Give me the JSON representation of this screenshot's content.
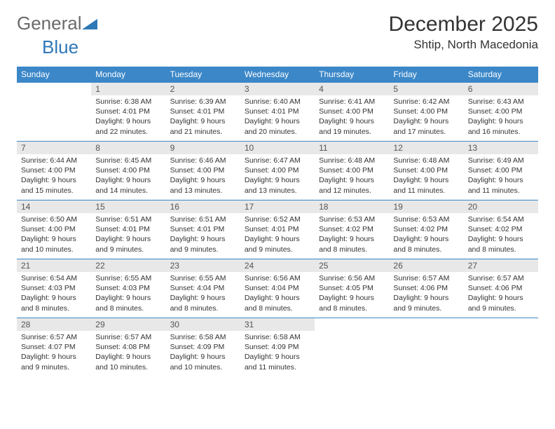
{
  "logo": {
    "general": "General",
    "blue": "Blue"
  },
  "header": {
    "month_title": "December 2025",
    "location": "Shtip, North Macedonia"
  },
  "weekdays": [
    "Sunday",
    "Monday",
    "Tuesday",
    "Wednesday",
    "Thursday",
    "Friday",
    "Saturday"
  ],
  "colors": {
    "header_bg": "#3b87c8",
    "header_fg": "#ffffff",
    "daynum_bg": "#e8e8e8",
    "rule": "#3b87c8"
  },
  "weeks": [
    [
      null,
      {
        "n": "1",
        "sunrise": "6:38 AM",
        "sunset": "4:01 PM",
        "daylight": "9 hours and 22 minutes."
      },
      {
        "n": "2",
        "sunrise": "6:39 AM",
        "sunset": "4:01 PM",
        "daylight": "9 hours and 21 minutes."
      },
      {
        "n": "3",
        "sunrise": "6:40 AM",
        "sunset": "4:01 PM",
        "daylight": "9 hours and 20 minutes."
      },
      {
        "n": "4",
        "sunrise": "6:41 AM",
        "sunset": "4:00 PM",
        "daylight": "9 hours and 19 minutes."
      },
      {
        "n": "5",
        "sunrise": "6:42 AM",
        "sunset": "4:00 PM",
        "daylight": "9 hours and 17 minutes."
      },
      {
        "n": "6",
        "sunrise": "6:43 AM",
        "sunset": "4:00 PM",
        "daylight": "9 hours and 16 minutes."
      }
    ],
    [
      {
        "n": "7",
        "sunrise": "6:44 AM",
        "sunset": "4:00 PM",
        "daylight": "9 hours and 15 minutes."
      },
      {
        "n": "8",
        "sunrise": "6:45 AM",
        "sunset": "4:00 PM",
        "daylight": "9 hours and 14 minutes."
      },
      {
        "n": "9",
        "sunrise": "6:46 AM",
        "sunset": "4:00 PM",
        "daylight": "9 hours and 13 minutes."
      },
      {
        "n": "10",
        "sunrise": "6:47 AM",
        "sunset": "4:00 PM",
        "daylight": "9 hours and 13 minutes."
      },
      {
        "n": "11",
        "sunrise": "6:48 AM",
        "sunset": "4:00 PM",
        "daylight": "9 hours and 12 minutes."
      },
      {
        "n": "12",
        "sunrise": "6:48 AM",
        "sunset": "4:00 PM",
        "daylight": "9 hours and 11 minutes."
      },
      {
        "n": "13",
        "sunrise": "6:49 AM",
        "sunset": "4:00 PM",
        "daylight": "9 hours and 11 minutes."
      }
    ],
    [
      {
        "n": "14",
        "sunrise": "6:50 AM",
        "sunset": "4:00 PM",
        "daylight": "9 hours and 10 minutes."
      },
      {
        "n": "15",
        "sunrise": "6:51 AM",
        "sunset": "4:01 PM",
        "daylight": "9 hours and 9 minutes."
      },
      {
        "n": "16",
        "sunrise": "6:51 AM",
        "sunset": "4:01 PM",
        "daylight": "9 hours and 9 minutes."
      },
      {
        "n": "17",
        "sunrise": "6:52 AM",
        "sunset": "4:01 PM",
        "daylight": "9 hours and 9 minutes."
      },
      {
        "n": "18",
        "sunrise": "6:53 AM",
        "sunset": "4:02 PM",
        "daylight": "9 hours and 8 minutes."
      },
      {
        "n": "19",
        "sunrise": "6:53 AM",
        "sunset": "4:02 PM",
        "daylight": "9 hours and 8 minutes."
      },
      {
        "n": "20",
        "sunrise": "6:54 AM",
        "sunset": "4:02 PM",
        "daylight": "9 hours and 8 minutes."
      }
    ],
    [
      {
        "n": "21",
        "sunrise": "6:54 AM",
        "sunset": "4:03 PM",
        "daylight": "9 hours and 8 minutes."
      },
      {
        "n": "22",
        "sunrise": "6:55 AM",
        "sunset": "4:03 PM",
        "daylight": "9 hours and 8 minutes."
      },
      {
        "n": "23",
        "sunrise": "6:55 AM",
        "sunset": "4:04 PM",
        "daylight": "9 hours and 8 minutes."
      },
      {
        "n": "24",
        "sunrise": "6:56 AM",
        "sunset": "4:04 PM",
        "daylight": "9 hours and 8 minutes."
      },
      {
        "n": "25",
        "sunrise": "6:56 AM",
        "sunset": "4:05 PM",
        "daylight": "9 hours and 8 minutes."
      },
      {
        "n": "26",
        "sunrise": "6:57 AM",
        "sunset": "4:06 PM",
        "daylight": "9 hours and 9 minutes."
      },
      {
        "n": "27",
        "sunrise": "6:57 AM",
        "sunset": "4:06 PM",
        "daylight": "9 hours and 9 minutes."
      }
    ],
    [
      {
        "n": "28",
        "sunrise": "6:57 AM",
        "sunset": "4:07 PM",
        "daylight": "9 hours and 9 minutes."
      },
      {
        "n": "29",
        "sunrise": "6:57 AM",
        "sunset": "4:08 PM",
        "daylight": "9 hours and 10 minutes."
      },
      {
        "n": "30",
        "sunrise": "6:58 AM",
        "sunset": "4:09 PM",
        "daylight": "9 hours and 10 minutes."
      },
      {
        "n": "31",
        "sunrise": "6:58 AM",
        "sunset": "4:09 PM",
        "daylight": "9 hours and 11 minutes."
      },
      null,
      null,
      null
    ]
  ],
  "labels": {
    "sunrise_prefix": "Sunrise: ",
    "sunset_prefix": "Sunset: ",
    "daylight_prefix": "Daylight: "
  }
}
